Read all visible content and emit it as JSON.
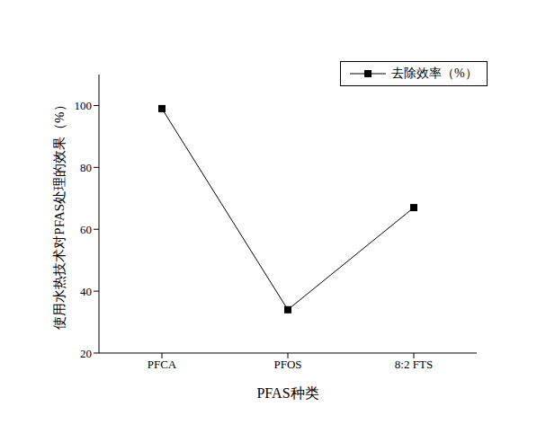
{
  "chart_data": {
    "type": "line",
    "x_label": "PFAS种类",
    "y_label": "使用水热技术对PFAS处理的效果（%）",
    "categories": [
      "PFCA",
      "PFOS",
      "8:2 FTS"
    ],
    "series": [
      {
        "name": "去除效率（%）",
        "color": "#000000",
        "values": [
          99,
          34,
          67
        ],
        "marker": "square",
        "line_style": "solid"
      }
    ],
    "ylim": [
      20,
      110
    ],
    "yticks": [
      20,
      40,
      60,
      80,
      100
    ],
    "grid": false,
    "legend": "upper right"
  }
}
